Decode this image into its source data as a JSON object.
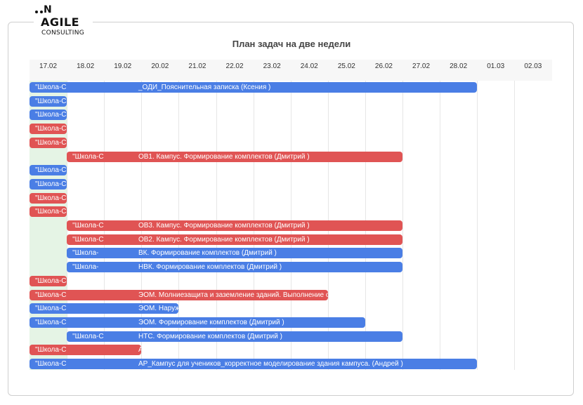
{
  "logo": {
    "top": "N",
    "name": "AGILE",
    "sub": "CONSULTING"
  },
  "title": "План задач на две недели",
  "dates": [
    "17.02",
    "18.02",
    "19.02",
    "20.02",
    "21.02",
    "22.02",
    "23.02",
    "24.02",
    "25.02",
    "26.02",
    "27.02",
    "28.02",
    "01.03",
    "02.03"
  ],
  "colors": {
    "blue": "#4a7ee5",
    "red": "#e05454",
    "weekend": "#e5f4e5"
  },
  "tasks": [
    {
      "start": 0,
      "end": 12,
      "color": "blue",
      "label": "\"Школа-С",
      "text": "_ОДИ_Пояснительная записка (Ксения                              )"
    },
    {
      "start": 0,
      "end": 1,
      "color": "blue",
      "label": "\"Школа-С",
      "text": ""
    },
    {
      "start": 0,
      "end": 1,
      "color": "blue",
      "label": "\"Школа-С",
      "text": ""
    },
    {
      "start": 0,
      "end": 1,
      "color": "red",
      "label": "\"Школа-С",
      "text": ""
    },
    {
      "start": 0,
      "end": 1,
      "color": "red",
      "label": "\"Школа-С",
      "text": ""
    },
    {
      "start": 1,
      "end": 10,
      "color": "red",
      "label": "\"Школа-С",
      "text": "ОВ1. Кампус. Формирование комплектов (Дмитрий                         )"
    },
    {
      "start": 0,
      "end": 1,
      "color": "blue",
      "label": "\"Школа-С",
      "text": ""
    },
    {
      "start": 0,
      "end": 1,
      "color": "blue",
      "label": "\"Школа-С",
      "text": ""
    },
    {
      "start": 0,
      "end": 1,
      "color": "red",
      "label": "\"Школа-С",
      "text": ""
    },
    {
      "start": 0,
      "end": 1,
      "color": "red",
      "label": "\"Школа-С",
      "text": ""
    },
    {
      "start": 1,
      "end": 10,
      "color": "red",
      "label": "\"Школа-С",
      "text": "ОВ3. Кампус. Формирование комплектов (Дмитрий                         )"
    },
    {
      "start": 1,
      "end": 10,
      "color": "red",
      "label": "\"Школа-С",
      "text": "ОВ2. Кампус. Формирование комплектов (Дмитрий                         )"
    },
    {
      "start": 1,
      "end": 10,
      "color": "blue",
      "label": "\"Школа-",
      "text": "ВК. Формирование комплектов (Дмитрий                         )"
    },
    {
      "start": 1,
      "end": 10,
      "color": "blue",
      "label": "\"Школа-",
      "text": "НВК. Формирование комплектов (Дмитрий                         )"
    },
    {
      "start": 0,
      "end": 1,
      "color": "red",
      "label": "\"Школа-С",
      "text": ""
    },
    {
      "start": 0,
      "end": 8,
      "color": "red",
      "label": "\"Школа-С",
      "text": "ЭОМ. Молниезащита и заземление зданий. Выполнение опусков молни"
    },
    {
      "start": 0,
      "end": 4,
      "color": "blue",
      "label": "\"Школа-С",
      "text": "ЭОМ. Наружное освеще"
    },
    {
      "start": 0,
      "end": 9,
      "color": "blue",
      "label": "\"Школа-С",
      "text": "ЭОМ. Формирование комплектов (Дмитрий                         )"
    },
    {
      "start": 1,
      "end": 10,
      "color": "blue",
      "label": "\"Школа-С",
      "text": "НТС. Формирование комплектов (Дмитрий                         )"
    },
    {
      "start": 0,
      "end": 3,
      "color": "red",
      "label": "\"Школа-С",
      "text": "АР_Блок Е (па"
    },
    {
      "start": 0,
      "end": 12,
      "color": "blue",
      "label": "\"Школа-С",
      "text": "АР_Кампус для учеников_корректное моделирование здания кампуса. (Андрей                     )"
    }
  ]
}
